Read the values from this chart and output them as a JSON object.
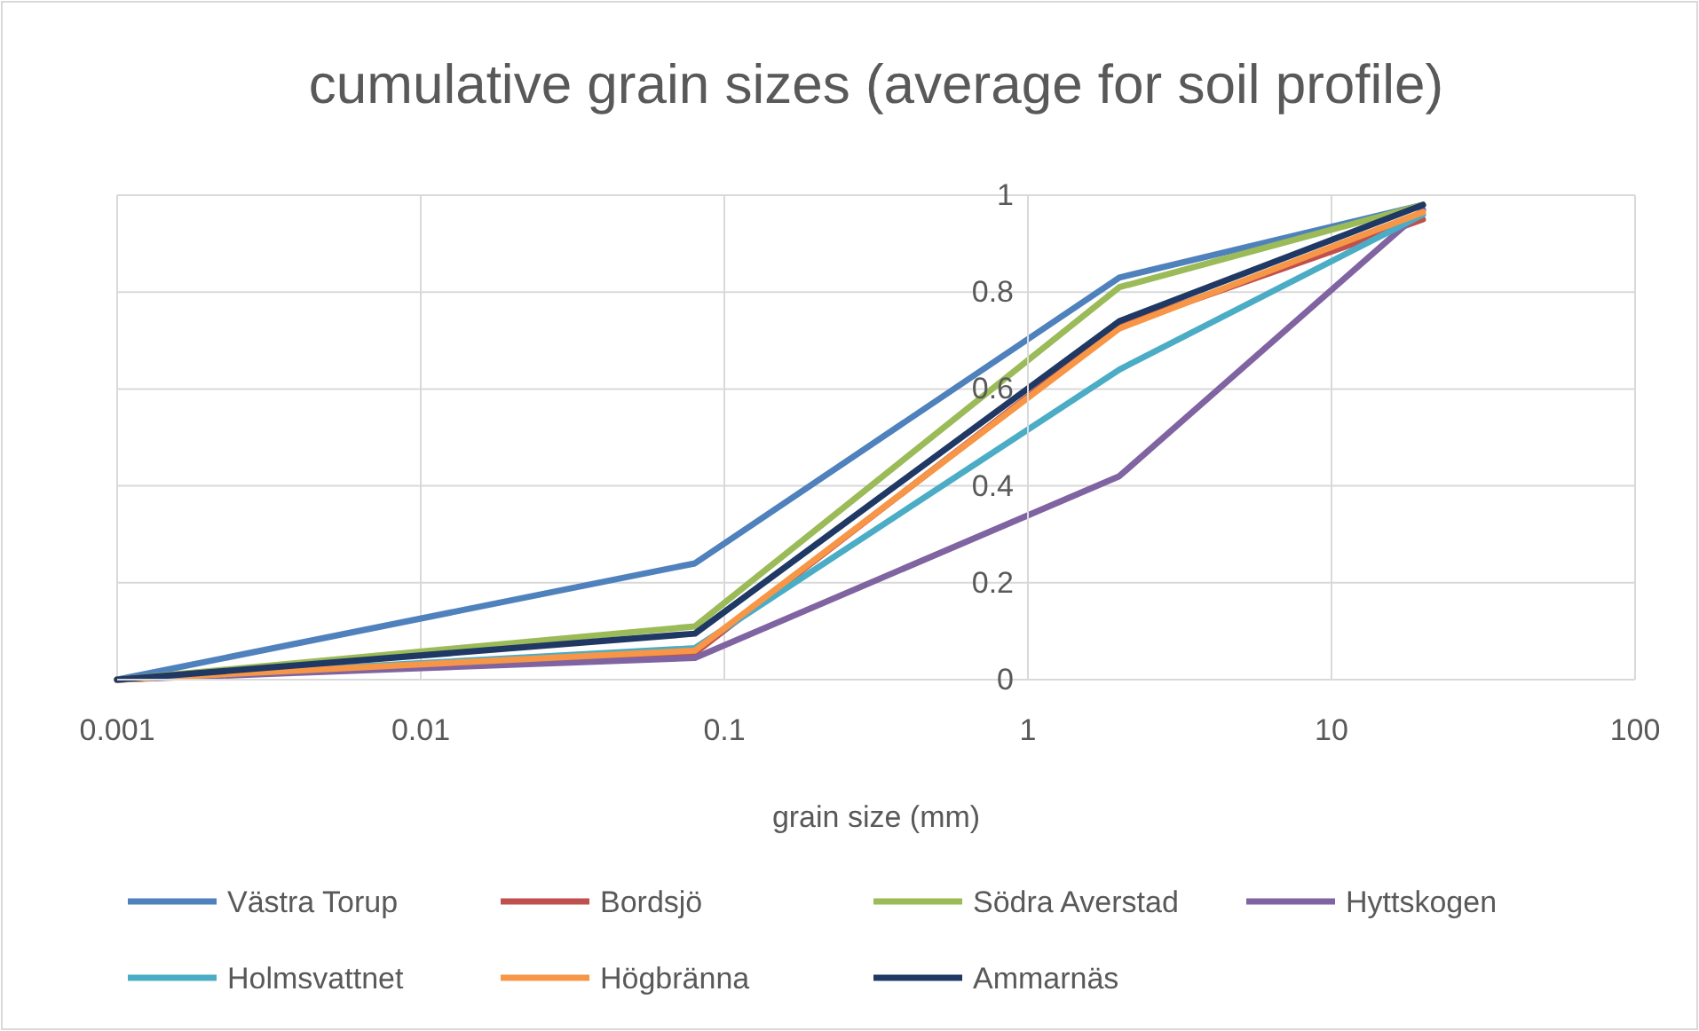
{
  "chart_data": {
    "type": "line",
    "title": "cumulative grain sizes (average for soil profile)",
    "xlabel": "grain size (mm)",
    "x": [
      0.001,
      0.08,
      2,
      20
    ],
    "log": "x",
    "xlim": [
      0.001,
      100
    ],
    "xticks": [
      {
        "value": 0.001,
        "label": "0.001"
      },
      {
        "value": 0.01,
        "label": "0.01"
      },
      {
        "value": 0.1,
        "label": "0.1"
      },
      {
        "value": 1,
        "label": "1"
      },
      {
        "value": 10,
        "label": "10"
      },
      {
        "value": 100,
        "label": "100"
      }
    ],
    "ylim": [
      0,
      1
    ],
    "yticks": [
      0,
      0.2,
      0.4,
      0.6,
      0.8,
      1
    ],
    "grid": true,
    "legend": "bottom",
    "marker": "none",
    "line_style": "solid",
    "series": [
      {
        "name": "Västra Torup",
        "color": "#4f81bd",
        "values": [
          0,
          0.24,
          0.83,
          0.98
        ]
      },
      {
        "name": "Bordsjö",
        "color": "#c0504d",
        "values": [
          0,
          0.055,
          0.73,
          0.95
        ]
      },
      {
        "name": "Södra Averstad",
        "color": "#9bbb59",
        "values": [
          0,
          0.11,
          0.81,
          0.98
        ]
      },
      {
        "name": "Hyttskogen",
        "color": "#8064a2",
        "values": [
          0,
          0.045,
          0.42,
          0.97
        ]
      },
      {
        "name": "Holmsvattnet",
        "color": "#4bacc6",
        "values": [
          0,
          0.065,
          0.64,
          0.96
        ]
      },
      {
        "name": "Högbränna",
        "color": "#f79646",
        "values": [
          0,
          0.06,
          0.725,
          0.965
        ]
      },
      {
        "name": "Ammarnäs",
        "color": "#1f3864",
        "values": [
          0,
          0.095,
          0.74,
          0.98
        ]
      }
    ]
  }
}
